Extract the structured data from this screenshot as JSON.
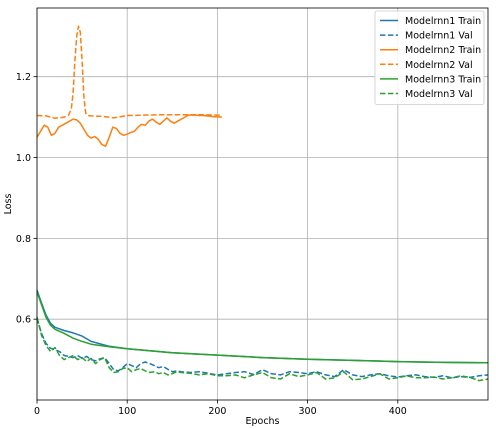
{
  "chart_data": {
    "type": "line",
    "title": "",
    "xlabel": "Epochs",
    "ylabel": "Loss",
    "xlim": [
      0,
      500
    ],
    "ylim": [
      0.4,
      1.37
    ],
    "grid": true,
    "legend_position": "top-right",
    "x_ticks": [
      0,
      100,
      200,
      300,
      400
    ],
    "y_ticks": [
      0.6,
      0.8,
      1.0,
      1.2
    ],
    "x_tick_labels": [
      "0",
      "100",
      "200",
      "300",
      "400"
    ],
    "y_tick_labels": [
      "0.6",
      "0.8",
      "1.0",
      "1.2"
    ],
    "series": [
      {
        "name": "Modelrnn1 Train",
        "color": "#1f77b4",
        "dash": "solid",
        "x": [
          0,
          5,
          10,
          15,
          20,
          30,
          40,
          50,
          60,
          80,
          100,
          150,
          200,
          250,
          300,
          350,
          400,
          450,
          500
        ],
        "y": [
          0.672,
          0.64,
          0.61,
          0.59,
          0.58,
          0.572,
          0.566,
          0.558,
          0.545,
          0.533,
          0.527,
          0.517,
          0.511,
          0.505,
          0.501,
          0.498,
          0.495,
          0.493,
          0.492
        ]
      },
      {
        "name": "Modelrnn1 Val",
        "color": "#1f77b4",
        "dash": "dashed",
        "x": [
          0,
          5,
          10,
          15,
          20,
          25,
          30,
          35,
          40,
          45,
          50,
          55,
          60,
          65,
          70,
          75,
          80,
          85,
          90,
          95,
          100,
          105,
          110,
          115,
          120,
          125,
          130,
          135,
          140,
          145,
          150,
          155,
          160,
          170,
          180,
          190,
          200,
          210,
          220,
          230,
          240,
          250,
          260,
          270,
          280,
          290,
          300,
          310,
          320,
          330,
          340,
          350,
          360,
          370,
          380,
          390,
          400,
          410,
          420,
          430,
          440,
          450,
          460,
          470,
          480,
          490,
          500
        ],
        "y": [
          0.602,
          0.565,
          0.54,
          0.528,
          0.525,
          0.52,
          0.51,
          0.508,
          0.505,
          0.51,
          0.503,
          0.508,
          0.5,
          0.497,
          0.502,
          0.505,
          0.49,
          0.475,
          0.472,
          0.48,
          0.49,
          0.485,
          0.48,
          0.49,
          0.494,
          0.49,
          0.485,
          0.48,
          0.483,
          0.476,
          0.47,
          0.472,
          0.47,
          0.468,
          0.47,
          0.466,
          0.462,
          0.465,
          0.468,
          0.47,
          0.463,
          0.475,
          0.465,
          0.462,
          0.47,
          0.468,
          0.465,
          0.47,
          0.462,
          0.458,
          0.475,
          0.462,
          0.458,
          0.462,
          0.465,
          0.46,
          0.457,
          0.46,
          0.462,
          0.458,
          0.456,
          0.46,
          0.455,
          0.458,
          0.456,
          0.46,
          0.462
        ]
      },
      {
        "name": "Modelrnn2 Train",
        "color": "#ff7f0e",
        "dash": "solid",
        "x": [
          0,
          4,
          8,
          12,
          16,
          20,
          24,
          28,
          32,
          36,
          40,
          44,
          48,
          52,
          56,
          60,
          64,
          68,
          72,
          76,
          80,
          84,
          88,
          92,
          96,
          100,
          104,
          108,
          112,
          116,
          120,
          124,
          128,
          132,
          136,
          140,
          144,
          148,
          152,
          156,
          160,
          164,
          168,
          172,
          176,
          180,
          184,
          188,
          192,
          196,
          200,
          205
        ],
        "y": [
          1.05,
          1.065,
          1.08,
          1.075,
          1.055,
          1.06,
          1.075,
          1.08,
          1.085,
          1.09,
          1.095,
          1.093,
          1.085,
          1.07,
          1.055,
          1.048,
          1.052,
          1.045,
          1.032,
          1.028,
          1.05,
          1.075,
          1.072,
          1.06,
          1.055,
          1.058,
          1.062,
          1.065,
          1.075,
          1.082,
          1.08,
          1.09,
          1.095,
          1.088,
          1.082,
          1.09,
          1.098,
          1.09,
          1.085,
          1.09,
          1.095,
          1.1,
          1.105,
          1.105,
          1.105,
          1.104,
          1.104,
          1.103,
          1.102,
          1.101,
          1.101,
          1.1
        ]
      },
      {
        "name": "Modelrnn2 Val",
        "color": "#ff7f0e",
        "dash": "dashed",
        "x": [
          0,
          10,
          20,
          30,
          35,
          38,
          40,
          42,
          44,
          46,
          48,
          50,
          52,
          54,
          56,
          60,
          70,
          80,
          85,
          90,
          100,
          120,
          140,
          160,
          180,
          200,
          205
        ],
        "y": [
          1.104,
          1.103,
          1.097,
          1.1,
          1.105,
          1.12,
          1.16,
          1.24,
          1.3,
          1.325,
          1.31,
          1.24,
          1.15,
          1.11,
          1.104,
          1.103,
          1.102,
          1.1,
          1.098,
          1.1,
          1.104,
          1.105,
          1.106,
          1.106,
          1.106,
          1.105,
          1.105
        ]
      },
      {
        "name": "Modelrnn3 Train",
        "color": "#2ca02c",
        "dash": "solid",
        "x": [
          0,
          5,
          10,
          15,
          20,
          30,
          40,
          50,
          60,
          80,
          100,
          150,
          200,
          250,
          300,
          350,
          400,
          450,
          500
        ],
        "y": [
          0.668,
          0.636,
          0.605,
          0.585,
          0.575,
          0.565,
          0.553,
          0.545,
          0.538,
          0.532,
          0.527,
          0.517,
          0.511,
          0.505,
          0.501,
          0.498,
          0.495,
          0.493,
          0.492
        ]
      },
      {
        "name": "Modelrnn3 Val",
        "color": "#2ca02c",
        "dash": "dashed",
        "x": [
          0,
          5,
          10,
          15,
          20,
          25,
          30,
          35,
          40,
          45,
          50,
          55,
          60,
          65,
          70,
          75,
          80,
          85,
          90,
          95,
          100,
          105,
          110,
          115,
          120,
          125,
          130,
          135,
          140,
          145,
          150,
          155,
          160,
          170,
          180,
          190,
          200,
          210,
          220,
          230,
          240,
          250,
          260,
          270,
          280,
          290,
          300,
          310,
          320,
          330,
          340,
          350,
          360,
          370,
          380,
          390,
          400,
          410,
          420,
          430,
          440,
          450,
          460,
          470,
          480,
          490,
          500
        ],
        "y": [
          0.605,
          0.56,
          0.535,
          0.52,
          0.53,
          0.51,
          0.5,
          0.505,
          0.51,
          0.5,
          0.505,
          0.495,
          0.503,
          0.49,
          0.5,
          0.505,
          0.48,
          0.468,
          0.47,
          0.478,
          0.48,
          0.47,
          0.475,
          0.478,
          0.472,
          0.468,
          0.47,
          0.465,
          0.468,
          0.462,
          0.465,
          0.47,
          0.468,
          0.466,
          0.462,
          0.465,
          0.46,
          0.46,
          0.462,
          0.455,
          0.462,
          0.468,
          0.455,
          0.452,
          0.465,
          0.458,
          0.462,
          0.468,
          0.452,
          0.455,
          0.47,
          0.45,
          0.452,
          0.458,
          0.465,
          0.452,
          0.455,
          0.46,
          0.455,
          0.455,
          0.457,
          0.452,
          0.455,
          0.46,
          0.456,
          0.448,
          0.452
        ]
      }
    ]
  }
}
